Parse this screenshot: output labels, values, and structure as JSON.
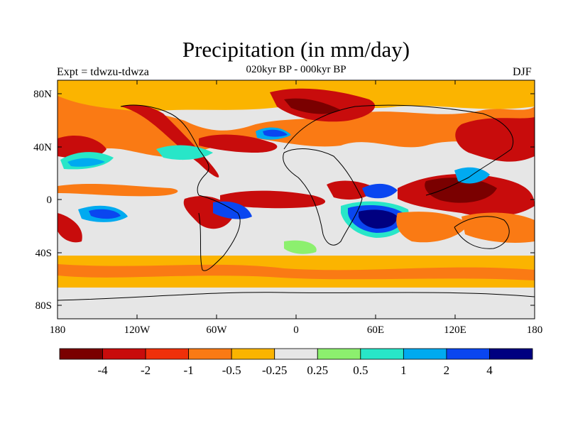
{
  "title": "Precipitation (in mm/day)",
  "subtitle": "020kyr BP - 000kyr BP",
  "left_label": "Expt = tdwzu-tdwza",
  "right_label": "DJF",
  "lat_ticks": [
    "80N",
    "40N",
    "0",
    "40S",
    "80S"
  ],
  "lon_ticks": [
    "180",
    "120W",
    "60W",
    "0",
    "60E",
    "120E",
    "180"
  ],
  "colorbar": {
    "colors": [
      "#7a0000",
      "#c80c0c",
      "#f0300a",
      "#fa7a14",
      "#fbb400",
      "#e6e6e6",
      "#8cf06e",
      "#28e6c8",
      "#00aaf0",
      "#0a46f0",
      "#000080"
    ],
    "labels": [
      "-4",
      "-2",
      "-1",
      "-0.5",
      "-0.25",
      "0.25",
      "0.5",
      "1",
      "2",
      "4"
    ]
  },
  "legend": {
    "dry": "#c80c0c",
    "wet": "#0a46f0",
    "neutral": "#e6e6e6"
  }
}
